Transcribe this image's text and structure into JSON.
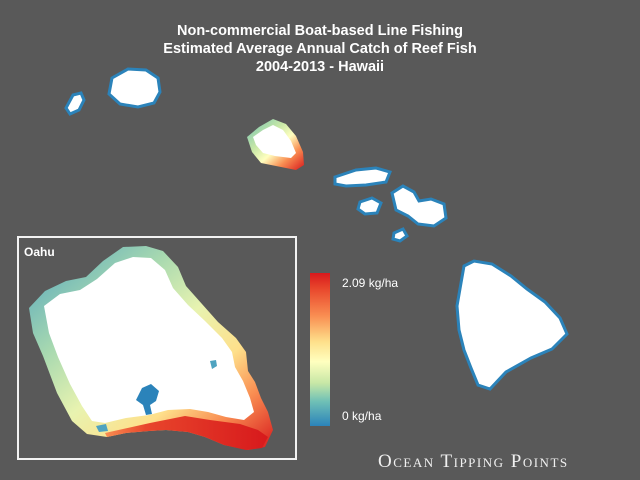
{
  "title": {
    "line1": "Non-commercial Boat-based Line Fishing",
    "line2": "Estimated Average Annual Catch of Reef Fish",
    "line3": "2004-2013 - Hawaii"
  },
  "inset": {
    "label": "Oahu"
  },
  "legend": {
    "max_label": "2.09 kg/ha",
    "min_label": "0 kg/ha",
    "max_value": 2.09,
    "min_value": 0,
    "unit": "kg/ha",
    "colors": [
      "#d7191c",
      "#f98e52",
      "#fee08b",
      "#ffffbf",
      "#c7e7a6",
      "#6fc0b6",
      "#2b83ba"
    ]
  },
  "brand": {
    "text": "Ocean Tipping Points"
  },
  "colors": {
    "background": "#595959",
    "land": "#ffffff",
    "low_catch": "#2b83ba",
    "high_catch": "#d7191c"
  }
}
